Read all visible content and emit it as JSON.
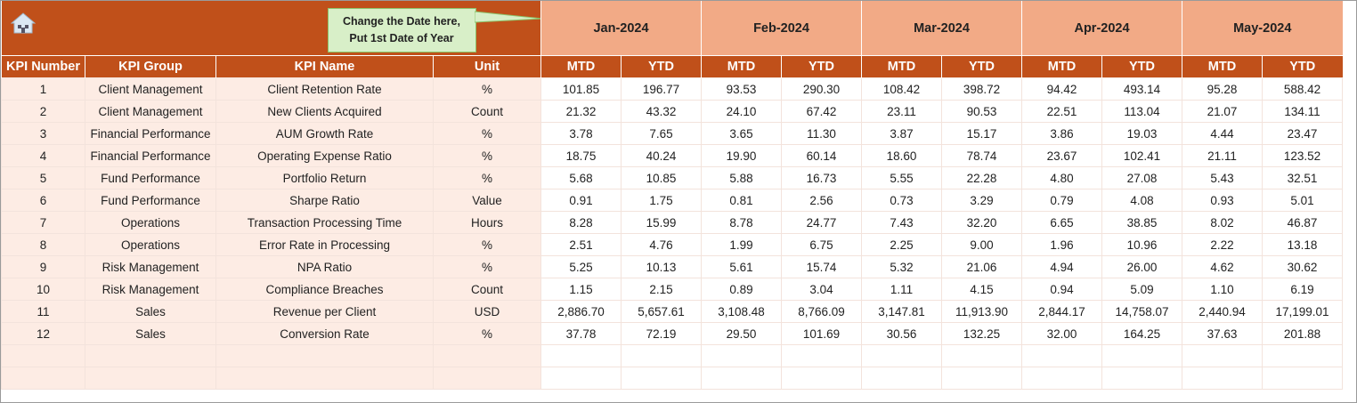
{
  "callout": {
    "line1": "Change the Date here,",
    "line2": "Put 1st Date of Year"
  },
  "icons": {
    "home": "home-icon"
  },
  "colors": {
    "header": "#C0501A",
    "month_header": "#F2AA86",
    "left_cells": "#FDECE4",
    "callout": "#D8EFC8"
  },
  "months": [
    "Jan-2024",
    "Feb-2024",
    "Mar-2024",
    "Apr-2024",
    "May-2024"
  ],
  "columns": [
    "KPI Number",
    "KPI Group",
    "KPI Name",
    "Unit"
  ],
  "sub": {
    "mtd": "MTD",
    "ytd": "YTD"
  },
  "rows": [
    {
      "n": "1",
      "group": "Client Management",
      "name": "Client Retention Rate",
      "unit": "%",
      "v": [
        "101.85",
        "196.77",
        "93.53",
        "290.30",
        "108.42",
        "398.72",
        "94.42",
        "493.14",
        "95.28",
        "588.42"
      ]
    },
    {
      "n": "2",
      "group": "Client Management",
      "name": "New Clients Acquired",
      "unit": "Count",
      "v": [
        "21.32",
        "43.32",
        "24.10",
        "67.42",
        "23.11",
        "90.53",
        "22.51",
        "113.04",
        "21.07",
        "134.11"
      ]
    },
    {
      "n": "3",
      "group": "Financial Performance",
      "name": "AUM Growth Rate",
      "unit": "%",
      "v": [
        "3.78",
        "7.65",
        "3.65",
        "11.30",
        "3.87",
        "15.17",
        "3.86",
        "19.03",
        "4.44",
        "23.47"
      ]
    },
    {
      "n": "4",
      "group": "Financial Performance",
      "name": "Operating Expense Ratio",
      "unit": "%",
      "v": [
        "18.75",
        "40.24",
        "19.90",
        "60.14",
        "18.60",
        "78.74",
        "23.67",
        "102.41",
        "21.11",
        "123.52"
      ]
    },
    {
      "n": "5",
      "group": "Fund Performance",
      "name": "Portfolio Return",
      "unit": "%",
      "v": [
        "5.68",
        "10.85",
        "5.88",
        "16.73",
        "5.55",
        "22.28",
        "4.80",
        "27.08",
        "5.43",
        "32.51"
      ]
    },
    {
      "n": "6",
      "group": "Fund Performance",
      "name": "Sharpe Ratio",
      "unit": "Value",
      "v": [
        "0.91",
        "1.75",
        "0.81",
        "2.56",
        "0.73",
        "3.29",
        "0.79",
        "4.08",
        "0.93",
        "5.01"
      ]
    },
    {
      "n": "7",
      "group": "Operations",
      "name": "Transaction Processing Time",
      "unit": "Hours",
      "v": [
        "8.28",
        "15.99",
        "8.78",
        "24.77",
        "7.43",
        "32.20",
        "6.65",
        "38.85",
        "8.02",
        "46.87"
      ]
    },
    {
      "n": "8",
      "group": "Operations",
      "name": "Error Rate in Processing",
      "unit": "%",
      "v": [
        "2.51",
        "4.76",
        "1.99",
        "6.75",
        "2.25",
        "9.00",
        "1.96",
        "10.96",
        "2.22",
        "13.18"
      ]
    },
    {
      "n": "9",
      "group": "Risk Management",
      "name": "NPA Ratio",
      "unit": "%",
      "v": [
        "5.25",
        "10.13",
        "5.61",
        "15.74",
        "5.32",
        "21.06",
        "4.94",
        "26.00",
        "4.62",
        "30.62"
      ]
    },
    {
      "n": "10",
      "group": "Risk Management",
      "name": "Compliance Breaches",
      "unit": "Count",
      "v": [
        "1.15",
        "2.15",
        "0.89",
        "3.04",
        "1.11",
        "4.15",
        "0.94",
        "5.09",
        "1.10",
        "6.19"
      ]
    },
    {
      "n": "11",
      "group": "Sales",
      "name": "Revenue per Client",
      "unit": "USD",
      "v": [
        "2,886.70",
        "5,657.61",
        "3,108.48",
        "8,766.09",
        "3,147.81",
        "11,913.90",
        "2,844.17",
        "14,758.07",
        "2,440.94",
        "17,199.01"
      ]
    },
    {
      "n": "12",
      "group": "Sales",
      "name": "Conversion Rate",
      "unit": "%",
      "v": [
        "37.78",
        "72.19",
        "29.50",
        "101.69",
        "30.56",
        "132.25",
        "32.00",
        "164.25",
        "37.63",
        "201.88"
      ]
    }
  ]
}
